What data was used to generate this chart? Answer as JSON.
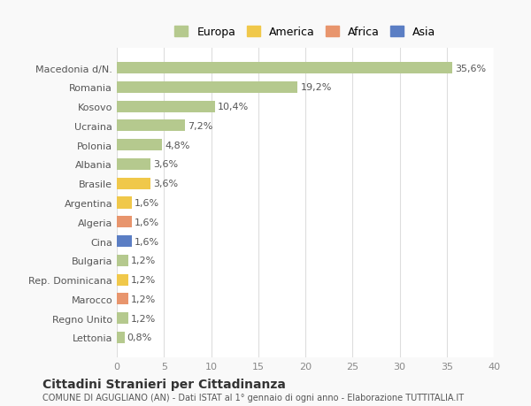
{
  "categories": [
    "Lettonia",
    "Regno Unito",
    "Marocco",
    "Rep. Dominicana",
    "Bulgaria",
    "Cina",
    "Algeria",
    "Argentina",
    "Brasile",
    "Albania",
    "Polonia",
    "Ucraina",
    "Kosovo",
    "Romania",
    "Macedonia d/N."
  ],
  "values": [
    0.8,
    1.2,
    1.2,
    1.2,
    1.2,
    1.6,
    1.6,
    1.6,
    3.6,
    3.6,
    4.8,
    7.2,
    10.4,
    19.2,
    35.6
  ],
  "labels": [
    "0,8%",
    "1,2%",
    "1,2%",
    "1,2%",
    "1,2%",
    "1,6%",
    "1,6%",
    "1,6%",
    "3,6%",
    "3,6%",
    "4,8%",
    "7,2%",
    "10,4%",
    "19,2%",
    "35,6%"
  ],
  "colors": [
    "#b5c98e",
    "#b5c98e",
    "#e8956d",
    "#f0c84a",
    "#b5c98e",
    "#5b7ec4",
    "#e8956d",
    "#f0c84a",
    "#f0c84a",
    "#b5c98e",
    "#b5c98e",
    "#b5c98e",
    "#b5c98e",
    "#b5c98e",
    "#b5c98e"
  ],
  "legend_labels": [
    "Europa",
    "America",
    "Africa",
    "Asia"
  ],
  "legend_colors": [
    "#b5c98e",
    "#f0c84a",
    "#e8956d",
    "#5b7ec4"
  ],
  "xlim": [
    0,
    40
  ],
  "xticks": [
    0,
    5,
    10,
    15,
    20,
    25,
    30,
    35,
    40
  ],
  "title_main": "Cittadini Stranieri per Cittadinanza",
  "title_sub": "COMUNE DI AGUGLIANO (AN) - Dati ISTAT al 1° gennaio di ogni anno - Elaborazione TUTTITALIA.IT",
  "background_color": "#f9f9f9",
  "bar_background": "#ffffff",
  "grid_color": "#dddddd"
}
